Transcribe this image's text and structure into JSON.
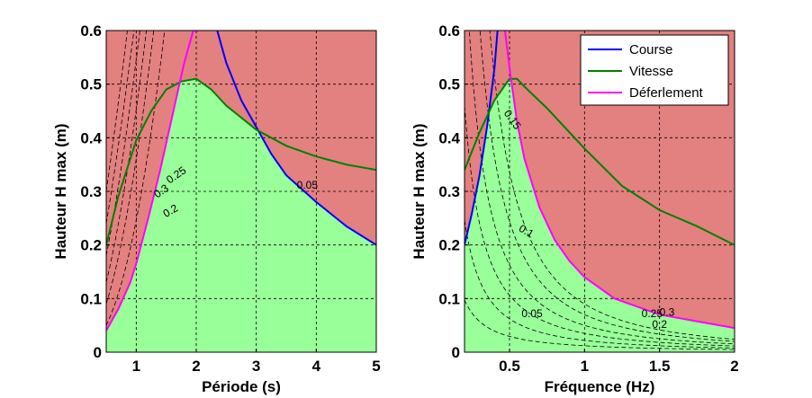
{
  "chart_data": [
    {
      "type": "line",
      "xlabel": "Période (s)",
      "ylabel": "Hauteur H max (m)",
      "xlim": [
        0.5,
        5
      ],
      "ylim": [
        0,
        0.6
      ],
      "xticks": [
        1,
        2,
        3,
        4,
        5
      ],
      "yticks": [
        0,
        0.1,
        0.2,
        0.3,
        0.4,
        0.5,
        0.6
      ],
      "xtick_labels": [
        "1",
        "2",
        "3",
        "4",
        "5"
      ],
      "ytick_labels": [
        "0",
        "0.1",
        "0.2",
        "0.3",
        "0.4",
        "0.5",
        "0.6"
      ],
      "grid": true,
      "series": [
        {
          "name": "Course",
          "color": "#0000ff",
          "x": [
            2.35,
            2.5,
            2.75,
            3.0,
            3.25,
            3.5,
            4.0,
            4.5,
            5.0
          ],
          "y": [
            0.6,
            0.54,
            0.47,
            0.42,
            0.37,
            0.33,
            0.28,
            0.235,
            0.2
          ]
        },
        {
          "name": "Vitesse",
          "color": "#008000",
          "x": [
            0.5,
            0.7,
            1.0,
            1.25,
            1.5,
            1.75,
            2.0,
            2.25,
            2.5,
            3.0,
            3.5,
            4.0,
            4.5,
            5.0
          ],
          "y": [
            0.2,
            0.29,
            0.395,
            0.45,
            0.49,
            0.505,
            0.51,
            0.49,
            0.46,
            0.415,
            0.385,
            0.365,
            0.35,
            0.34
          ]
        },
        {
          "name": "Déferlement",
          "color": "#ff00ff",
          "x": [
            0.5,
            0.7,
            0.9,
            1.0,
            1.2,
            1.4,
            1.6,
            1.8,
            1.95,
            2.0,
            2.05
          ],
          "y": [
            0.04,
            0.08,
            0.13,
            0.165,
            0.25,
            0.34,
            0.44,
            0.54,
            0.6,
            0.6,
            0.6
          ]
        }
      ],
      "contour_labels": [
        "0.3",
        "0.25",
        "0.2",
        "0.05"
      ]
    },
    {
      "type": "line",
      "xlabel": "Fréquence (Hz)",
      "ylabel": "Hauteur H max (m)",
      "xlim": [
        0.2,
        2
      ],
      "ylim": [
        0,
        0.6
      ],
      "xticks": [
        0.5,
        1,
        1.5,
        2
      ],
      "yticks": [
        0,
        0.1,
        0.2,
        0.3,
        0.4,
        0.5,
        0.6
      ],
      "xtick_labels": [
        "0.5",
        "1",
        "1.5",
        "2"
      ],
      "ytick_labels": [
        "0",
        "0.1",
        "0.2",
        "0.3",
        "0.4",
        "0.5",
        "0.6"
      ],
      "grid": true,
      "series": [
        {
          "name": "Course",
          "color": "#0000ff",
          "x": [
            0.2,
            0.25,
            0.3,
            0.35,
            0.4,
            0.42
          ],
          "y": [
            0.2,
            0.26,
            0.33,
            0.42,
            0.53,
            0.6
          ]
        },
        {
          "name": "Vitesse",
          "color": "#008000",
          "x": [
            0.2,
            0.3,
            0.4,
            0.5,
            0.55,
            0.6,
            0.75,
            1.0,
            1.25,
            1.5,
            1.75,
            2.0
          ],
          "y": [
            0.34,
            0.41,
            0.47,
            0.51,
            0.51,
            0.495,
            0.455,
            0.38,
            0.31,
            0.265,
            0.235,
            0.2
          ]
        },
        {
          "name": "Déferlement",
          "color": "#ff00ff",
          "x": [
            0.47,
            0.5,
            0.55,
            0.6,
            0.7,
            0.8,
            0.9,
            1.0,
            1.2,
            1.5,
            2.0
          ],
          "y": [
            0.6,
            0.53,
            0.43,
            0.36,
            0.27,
            0.21,
            0.17,
            0.14,
            0.1,
            0.07,
            0.045
          ]
        }
      ],
      "contour_labels": [
        "0.15",
        "0.1",
        "0.05",
        "0.25",
        "0.3",
        "0.2"
      ],
      "legend": {
        "position": "top-right",
        "entries": [
          "Course",
          "Vitesse",
          "Déferlement"
        ]
      }
    }
  ],
  "colors": {
    "infeasible_region": "#e38080",
    "feasible_region": "#99ff99",
    "grid": "#000000",
    "contour": "#000000"
  }
}
